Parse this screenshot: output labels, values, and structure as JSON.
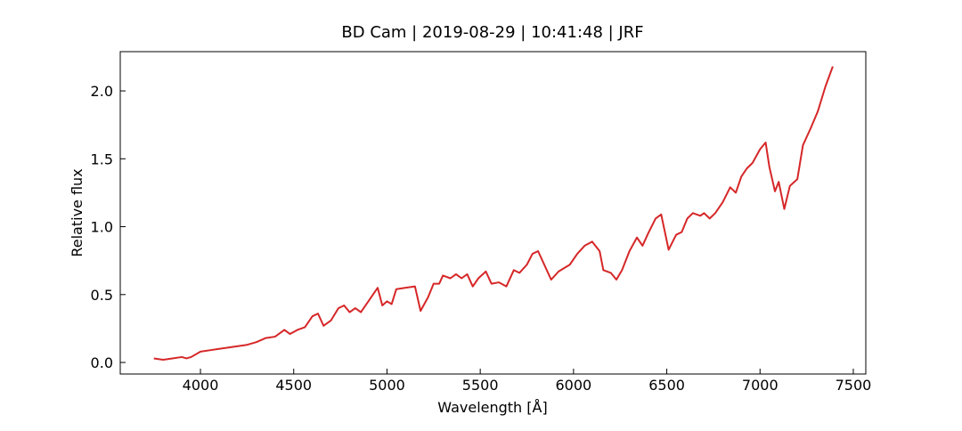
{
  "chart_data": {
    "type": "line",
    "title": "BD Cam | 2019-08-29 | 10:41:48 | JRF",
    "xlabel": "Wavelength [Å]",
    "ylabel": "Relative flux",
    "xlim": [
      3570,
      7567
    ],
    "ylim": [
      -0.085,
      2.289
    ],
    "xticks": [
      4000,
      4500,
      5000,
      5500,
      6000,
      6500,
      7000,
      7500
    ],
    "yticks": [
      {
        "value": 0,
        "label": "0.0"
      },
      0.5,
      {
        "value": 1,
        "label": "1.0"
      },
      1.5,
      {
        "value": 2,
        "label": "2.0"
      }
    ],
    "grid": false,
    "series": [
      {
        "color": "#d62728",
        "x": [
          3750,
          3800,
          3850,
          3900,
          3925,
          3950,
          4000,
          4050,
          4100,
          4150,
          4200,
          4250,
          4300,
          4350,
          4400,
          4450,
          4480,
          4520,
          4560,
          4600,
          4630,
          4660,
          4700,
          4740,
          4770,
          4800,
          4830,
          4860,
          4900,
          4950,
          4975,
          5000,
          5025,
          5050,
          5100,
          5150,
          5180,
          5220,
          5250,
          5280,
          5300,
          5340,
          5370,
          5400,
          5430,
          5460,
          5490,
          5530,
          5560,
          5600,
          5640,
          5680,
          5710,
          5750,
          5780,
          5810,
          5850,
          5880,
          5920,
          5980,
          6020,
          6060,
          6100,
          6140,
          6160,
          6200,
          6230,
          6260,
          6300,
          6340,
          6370,
          6400,
          6440,
          6470,
          6510,
          6550,
          6580,
          6610,
          6640,
          6680,
          6700,
          6730,
          6760,
          6800,
          6840,
          6870,
          6900,
          6930,
          6960,
          7000,
          7030,
          7050,
          7080,
          7100,
          7130,
          7160,
          7200,
          7230,
          7270,
          7310,
          7350,
          7390
        ],
        "values": [
          0.03,
          0.02,
          0.03,
          0.04,
          0.03,
          0.04,
          0.08,
          0.09,
          0.1,
          0.11,
          0.12,
          0.13,
          0.15,
          0.18,
          0.19,
          0.24,
          0.21,
          0.24,
          0.26,
          0.34,
          0.36,
          0.27,
          0.31,
          0.4,
          0.42,
          0.37,
          0.4,
          0.37,
          0.45,
          0.55,
          0.42,
          0.45,
          0.43,
          0.54,
          0.55,
          0.56,
          0.38,
          0.48,
          0.58,
          0.58,
          0.64,
          0.62,
          0.65,
          0.62,
          0.65,
          0.56,
          0.62,
          0.67,
          0.58,
          0.59,
          0.56,
          0.68,
          0.66,
          0.72,
          0.8,
          0.82,
          0.7,
          0.61,
          0.67,
          0.72,
          0.8,
          0.86,
          0.89,
          0.82,
          0.68,
          0.66,
          0.61,
          0.68,
          0.82,
          0.92,
          0.86,
          0.95,
          1.06,
          1.09,
          0.83,
          0.94,
          0.96,
          1.06,
          1.1,
          1.08,
          1.1,
          1.06,
          1.1,
          1.18,
          1.29,
          1.25,
          1.37,
          1.43,
          1.47,
          1.57,
          1.62,
          1.44,
          1.26,
          1.33,
          1.13,
          1.3,
          1.35,
          1.6,
          1.72,
          1.85,
          2.03,
          2.18
        ]
      }
    ]
  }
}
